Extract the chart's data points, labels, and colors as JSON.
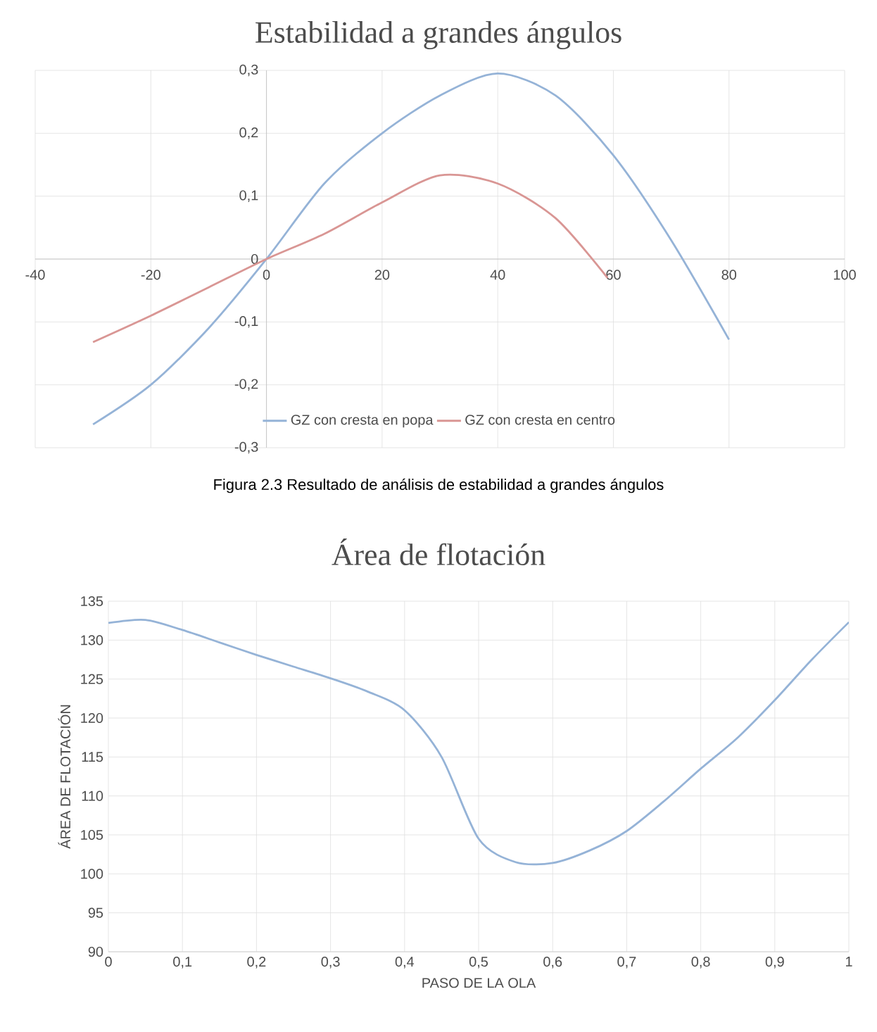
{
  "chart_data": [
    {
      "type": "line",
      "title": "Estabilidad a grandes ángulos",
      "annotations": [
        "Figura 2.3 Resultado de análisis de estabilidad a grandes ángulos"
      ],
      "xlim": [
        -40,
        100
      ],
      "xticks": [
        -40,
        -20,
        0,
        20,
        40,
        60,
        80,
        100
      ],
      "ylim": [
        -0.3,
        0.3
      ],
      "yticks": [
        {
          "value": -0.3,
          "label": "-0,3"
        },
        {
          "value": -0.2,
          "label": "-0,2"
        },
        {
          "value": -0.1,
          "label": "-0,1"
        },
        0,
        {
          "value": 0.1,
          "label": "0,1"
        },
        {
          "value": 0.2,
          "label": "0,2"
        },
        {
          "value": 0.3,
          "label": "0,3"
        }
      ],
      "grid": true,
      "legend": "bottom",
      "marker": "none",
      "line_style": "solid",
      "series": [
        {
          "name": "GZ con cresta en popa",
          "color": "#95b3d7",
          "x": [
            -30,
            -20,
            -10,
            0,
            10,
            20,
            30,
            40,
            50,
            60,
            70,
            80
          ],
          "values": [
            -0.263,
            -0.2,
            -0.11,
            0,
            0.12,
            0.2,
            0.26,
            0.295,
            0.26,
            0.165,
            0.03,
            -0.128
          ]
        },
        {
          "name": "GZ con cresta en centro",
          "color": "#d99694",
          "x": [
            -30,
            -20,
            -10,
            0,
            10,
            20,
            30,
            40,
            50,
            59
          ],
          "values": [
            -0.132,
            -0.09,
            -0.045,
            0,
            0.04,
            0.09,
            0.133,
            0.12,
            0.065,
            -0.03
          ]
        }
      ]
    },
    {
      "type": "line",
      "title": "Área de flotación",
      "xlabel": "PASO DE LA OLA",
      "ylabel": "ÁREA DE FLOTACIÓN",
      "xlim": [
        0,
        1
      ],
      "xticks": [
        0,
        {
          "value": 0.1,
          "label": "0,1"
        },
        {
          "value": 0.2,
          "label": "0,2"
        },
        {
          "value": 0.3,
          "label": "0,3"
        },
        {
          "value": 0.4,
          "label": "0,4"
        },
        {
          "value": 0.5,
          "label": "0,5"
        },
        {
          "value": 0.6,
          "label": "0,6"
        },
        {
          "value": 0.7,
          "label": "0,7"
        },
        {
          "value": 0.8,
          "label": "0,8"
        },
        {
          "value": 0.9,
          "label": "0,9"
        },
        1
      ],
      "ylim": [
        90,
        135
      ],
      "yticks": [
        90,
        95,
        100,
        105,
        110,
        115,
        120,
        125,
        130,
        135
      ],
      "grid": true,
      "marker": "none",
      "line_style": "solid",
      "series": [
        {
          "color": "#95b3d7",
          "x": [
            0,
            0.05,
            0.1,
            0.15,
            0.2,
            0.25,
            0.3,
            0.35,
            0.4,
            0.45,
            0.5,
            0.55,
            0.6,
            0.65,
            0.7,
            0.75,
            0.8,
            0.85,
            0.9,
            0.95,
            1
          ],
          "values": [
            132.2,
            132.6,
            131.3,
            129.7,
            128.1,
            126.6,
            125.1,
            123.4,
            121,
            115,
            104.5,
            101.5,
            101.4,
            103,
            105.5,
            109.3,
            113.5,
            117.5,
            122.3,
            127.5,
            132.3
          ]
        }
      ]
    }
  ]
}
